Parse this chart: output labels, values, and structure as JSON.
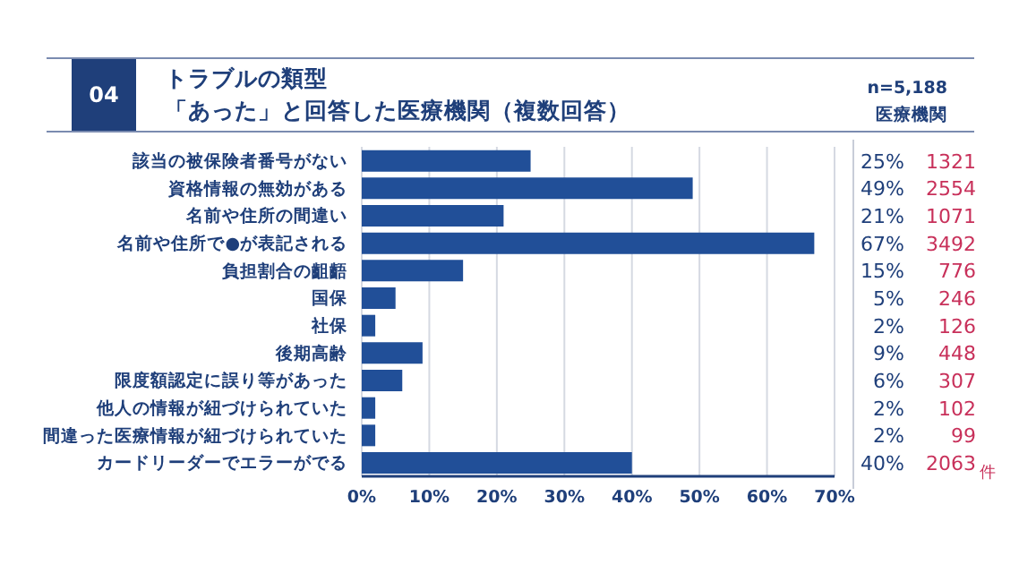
{
  "chart_data": {
    "type": "bar",
    "orientation": "horizontal",
    "title": "トラブルの類型",
    "subtitle": "「あった」と回答した医療機関（複数回答）",
    "categories": [
      "該当の被保険者番号がない",
      "資格情報の無効がある",
      "名前や住所の間違い",
      "名前や住所で●が表記される",
      "負担割合の齟齬",
      "国保",
      "社保",
      "後期高齢",
      "限度額認定に誤り等があった",
      "他人の情報が紐づけられていた",
      "間違った医療情報が紐づけられていた",
      "カードリーダーでエラーがでる"
    ],
    "values": [
      25,
      49,
      21,
      67,
      15,
      5,
      2,
      9,
      6,
      2,
      2,
      40
    ],
    "value_labels": [
      "25%",
      "49%",
      "21%",
      "67%",
      "15%",
      "5%",
      "2%",
      "9%",
      "6%",
      "2%",
      "2%",
      "40%"
    ],
    "color": "#214f98",
    "xlim": [
      0,
      70
    ],
    "xticks": [
      {
        "value": 0,
        "label": "0%"
      },
      {
        "value": 10,
        "label": "10%"
      },
      {
        "value": 20,
        "label": "20%"
      },
      {
        "value": 30,
        "label": "30%"
      },
      {
        "value": 40,
        "label": "40%"
      },
      {
        "value": 50,
        "label": "50%"
      },
      {
        "value": 60,
        "label": "60%"
      },
      {
        "value": 70,
        "label": "70%"
      }
    ],
    "grid": "x",
    "annotations": [
      "04",
      "n=5,188",
      "医療機関",
      "件",
      "1321",
      "2554",
      "1071",
      "3492",
      "776",
      "246",
      "126",
      "448",
      "307",
      "102",
      "99",
      "2063"
    ]
  }
}
